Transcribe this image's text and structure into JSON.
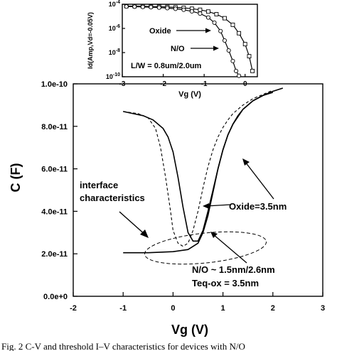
{
  "chart_data": [
    {
      "type": "line",
      "xlabel": "Vg (V)",
      "ylabel": "C (F)",
      "xlim": [
        -2,
        3
      ],
      "ylim": [
        0,
        1e-10
      ],
      "xticks": [
        "-2",
        "-1",
        "0",
        "1",
        "2",
        "3"
      ],
      "yticks": [
        "0.0e+0",
        "2.0e-11",
        "4.0e-11",
        "6.0e-11",
        "8.0e-11",
        "1.0e-10"
      ],
      "series": [
        {
          "style": "dashed",
          "x": [
            -1.0,
            -0.7,
            -0.5,
            -0.35,
            -0.25,
            -0.15,
            -0.05,
            0.0,
            0.1,
            0.2,
            0.3,
            0.4,
            0.5,
            0.6,
            0.7,
            0.8,
            0.9,
            1.0,
            1.1,
            1.2,
            1.4,
            1.6,
            1.8,
            2.0
          ],
          "y": [
            8.7e-11,
            8.6e-11,
            8.4e-11,
            7.9e-11,
            7e-11,
            5.6e-11,
            4e-11,
            3.1e-11,
            2.5e-11,
            2.35e-11,
            2.5e-11,
            3.1e-11,
            4e-11,
            5.1e-11,
            6.1e-11,
            6.9e-11,
            7.5e-11,
            7.95e-11,
            8.3e-11,
            8.6e-11,
            9e-11,
            9.3e-11,
            9.5e-11,
            9.7e-11
          ]
        },
        {
          "style": "solid",
          "x": [
            -1.0,
            -0.8,
            -0.6,
            -0.4,
            -0.2,
            -0.1,
            0.0,
            0.1,
            0.2,
            0.3,
            0.4,
            0.5,
            0.6,
            0.7,
            0.8,
            0.9,
            1.0,
            1.1,
            1.2,
            1.4,
            1.6,
            1.8,
            2.0,
            2.2
          ],
          "y": [
            8.7e-11,
            8.6e-11,
            8.5e-11,
            8.3e-11,
            7.9e-11,
            7.5e-11,
            6.8e-11,
            5.6e-11,
            4.2e-11,
            3e-11,
            2.6e-11,
            2.6e-11,
            3.1e-11,
            4e-11,
            5e-11,
            6e-11,
            6.9e-11,
            7.6e-11,
            8.1e-11,
            8.8e-11,
            9.2e-11,
            9.45e-11,
            9.65e-11,
            9.8e-11
          ]
        },
        {
          "style": "solid",
          "x": [
            -1.0,
            -0.5,
            0.0,
            0.3,
            0.5,
            0.6,
            0.7,
            0.8,
            0.9,
            1.0,
            1.1,
            1.2,
            1.3,
            1.4,
            1.6,
            1.8,
            2.0
          ],
          "y": [
            2.05e-11,
            2.05e-11,
            2.1e-11,
            2.2e-11,
            2.5e-11,
            3e-11,
            3.8e-11,
            4.9e-11,
            6e-11,
            6.9e-11,
            7.6e-11,
            8.1e-11,
            8.5e-11,
            8.8e-11,
            9.2e-11,
            9.45e-11,
            9.6e-11
          ]
        }
      ],
      "annotations": [
        "interface characteristics",
        "Oxide=3.5nm",
        "N/O ~ 1.5nm/2.6nm",
        "Teq-ox = 3.5nm"
      ]
    },
    {
      "type": "line",
      "xlabel": "Vg (V)",
      "ylabel": "Id(Amp,Vd=-0.05V)",
      "xlim": [
        -3,
        0.3
      ],
      "yscale": "log",
      "ylim": [
        1e-10,
        0.0001
      ],
      "xticks": [
        "-3",
        "-2",
        "-1",
        "0"
      ],
      "yticks": [
        "10^-4",
        "10^-6",
        "10^-8",
        "10^-10"
      ],
      "series": [
        {
          "name": "Oxide",
          "marker": "square",
          "x": [
            -2.9,
            -2.7,
            -2.5,
            -2.3,
            -2.1,
            -1.9,
            -1.7,
            -1.5,
            -1.3,
            -1.1,
            -0.9,
            -0.7,
            -0.5,
            -0.3,
            -0.15,
            0.0,
            0.1,
            0.18
          ],
          "y": [
            7e-05,
            7e-05,
            6.8e-05,
            6.5e-05,
            6.3e-05,
            6e-05,
            5.5e-05,
            5e-05,
            4.3e-05,
            3.5e-05,
            2.5e-05,
            1.5e-05,
            7e-06,
            2e-06,
            4e-07,
            5e-08,
            5e-09,
            3e-10
          ]
        },
        {
          "name": "N/O",
          "marker": "circle",
          "x": [
            -2.9,
            -2.7,
            -2.5,
            -2.3,
            -2.1,
            -1.9,
            -1.7,
            -1.5,
            -1.3,
            -1.1,
            -0.9,
            -0.75,
            -0.6,
            -0.5,
            -0.4,
            -0.3,
            -0.22,
            -0.15
          ],
          "y": [
            6.5e-05,
            6.3e-05,
            6e-05,
            5.7e-05,
            5.3e-05,
            4.8e-05,
            4.2e-05,
            3.5e-05,
            2.6e-05,
            1.7e-05,
            8e-06,
            3e-06,
            6e-07,
            1e-07,
            1.5e-08,
            2e-09,
            3e-10,
            1.2e-10
          ]
        }
      ],
      "annotations": [
        "L/W = 0.8um/2.0um"
      ]
    }
  ],
  "caption": "Fig. 2    C-V and threshold I–V characteristics for devices with N/O"
}
